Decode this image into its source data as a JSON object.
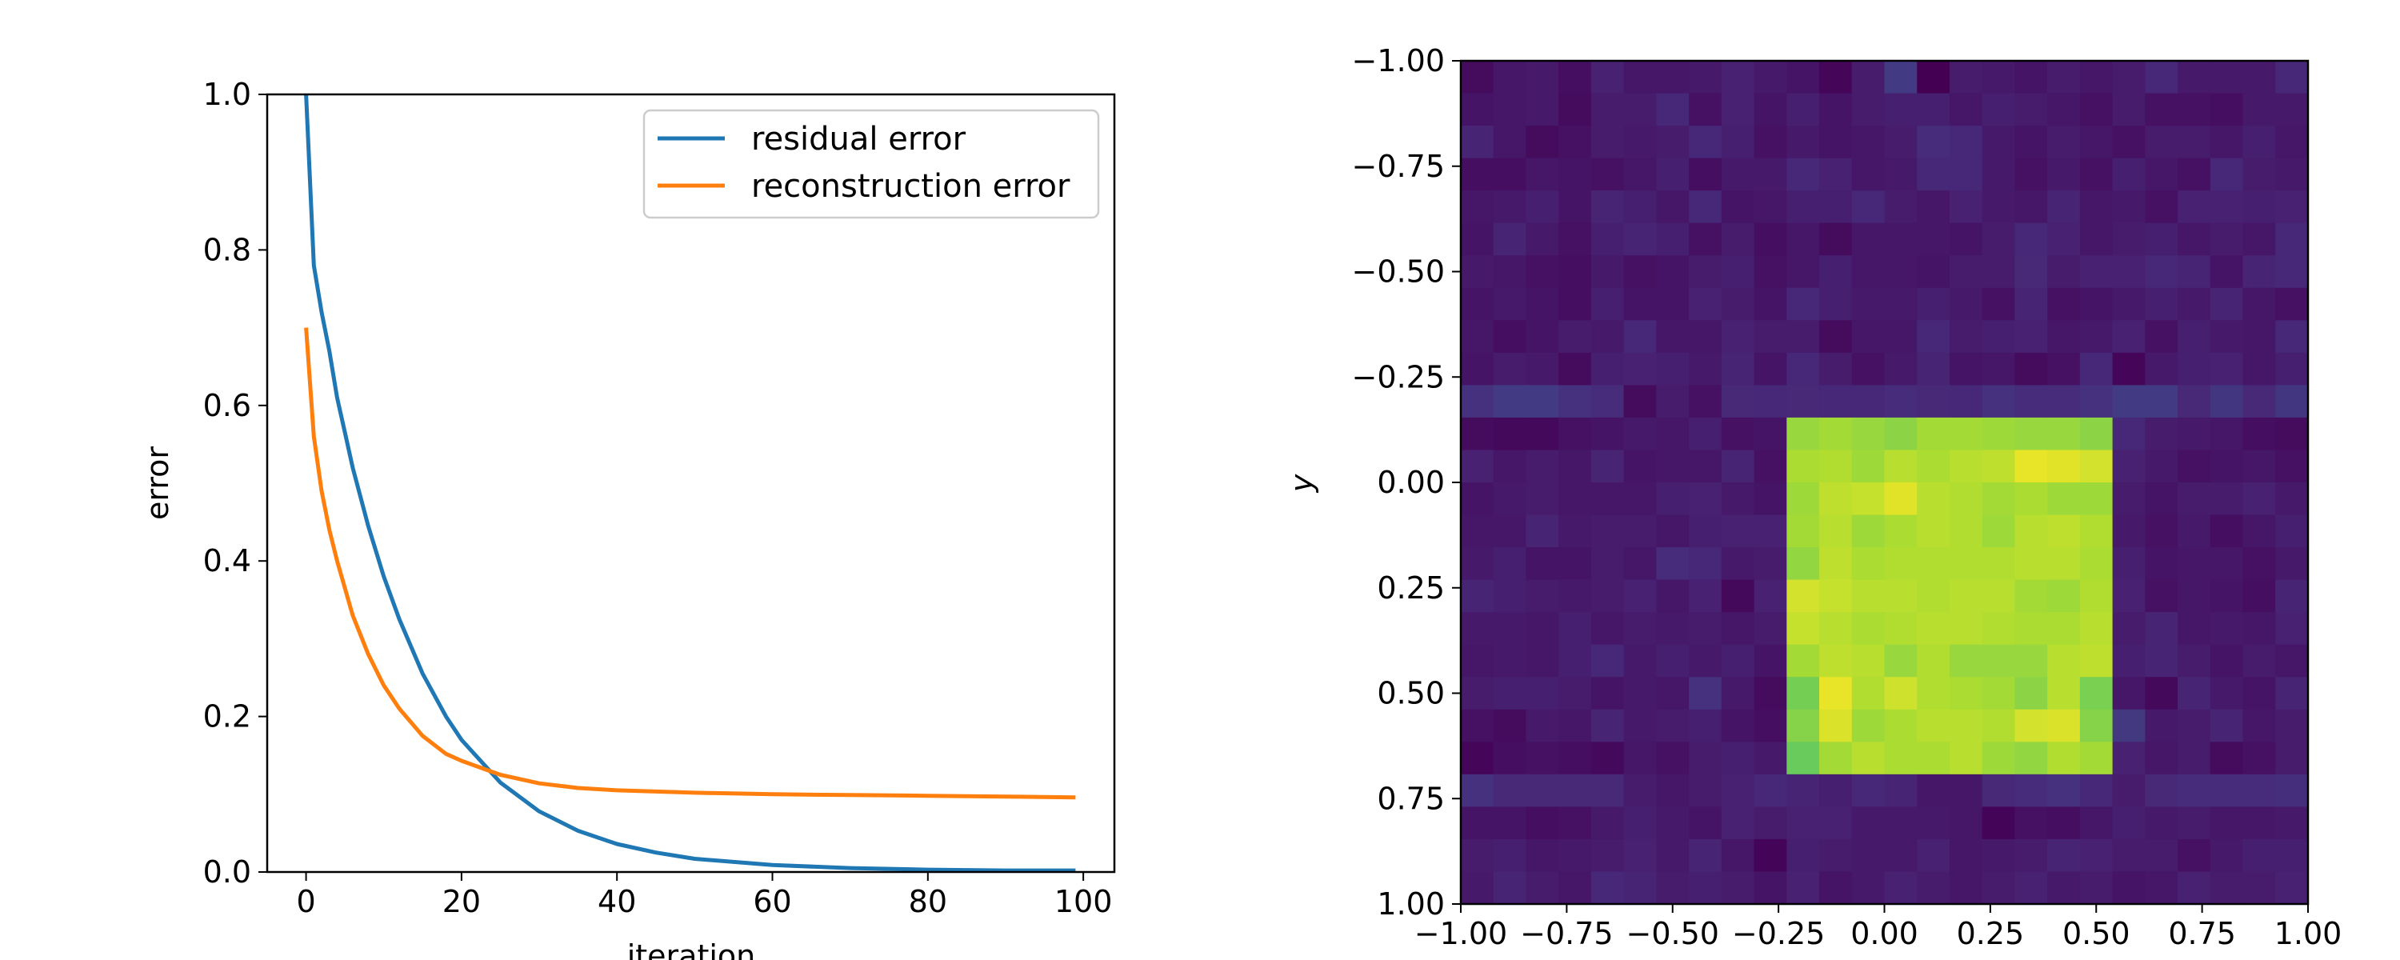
{
  "chart_data": [
    {
      "type": "line",
      "title": "",
      "xlabel": "iteration",
      "ylabel": "error",
      "xlim": [
        -5,
        104
      ],
      "ylim": [
        0,
        1
      ],
      "xticks": [
        0,
        20,
        40,
        60,
        80,
        100
      ],
      "xtick_labels": [
        "0",
        "20",
        "40",
        "60",
        "80",
        "100"
      ],
      "yticks": [
        0,
        0.2,
        0.4,
        0.6,
        0.8,
        1.0
      ],
      "ytick_labels": [
        "0.0",
        "0.2",
        "0.4",
        "0.6",
        "0.8",
        "1.0"
      ],
      "grid": false,
      "legend": "top-right",
      "series": [
        {
          "name": "residual error",
          "color": "#1f77b4",
          "x": [
            0,
            1,
            2,
            3,
            4,
            5,
            6,
            8,
            10,
            12,
            15,
            18,
            20,
            25,
            30,
            35,
            40,
            45,
            50,
            60,
            70,
            80,
            90,
            99
          ],
          "y": [
            1.0,
            0.78,
            0.72,
            0.67,
            0.61,
            0.565,
            0.52,
            0.445,
            0.38,
            0.325,
            0.255,
            0.2,
            0.17,
            0.115,
            0.078,
            0.053,
            0.036,
            0.025,
            0.017,
            0.009,
            0.005,
            0.003,
            0.002,
            0.002
          ]
        },
        {
          "name": "reconstruction error",
          "color": "#ff7f0e",
          "x": [
            0,
            1,
            2,
            3,
            4,
            6,
            8,
            10,
            12,
            15,
            18,
            20,
            25,
            30,
            35,
            40,
            50,
            60,
            70,
            80,
            90,
            99
          ],
          "y": [
            0.7,
            0.56,
            0.49,
            0.44,
            0.4,
            0.33,
            0.28,
            0.24,
            0.21,
            0.175,
            0.152,
            0.143,
            0.125,
            0.114,
            0.108,
            0.105,
            0.102,
            0.1,
            0.099,
            0.098,
            0.097,
            0.096
          ]
        }
      ]
    },
    {
      "type": "heatmap",
      "title": "",
      "xlabel": "",
      "ylabel": "y",
      "xlim": [
        -1,
        1
      ],
      "ylim": [
        -1,
        1
      ],
      "y_inverted": true,
      "xticks": [
        -1.0,
        -0.75,
        -0.5,
        -0.25,
        0.0,
        0.25,
        0.5,
        0.75,
        1.0
      ],
      "xtick_labels": [
        "−1.00",
        "−0.75",
        "−0.50",
        "−0.25",
        "0.00",
        "0.25",
        "0.50",
        "0.75",
        "1.00"
      ],
      "yticks": [
        -1.0,
        -0.75,
        -0.5,
        -0.25,
        0.0,
        0.25,
        0.5,
        0.75,
        1.0
      ],
      "ytick_labels": [
        "−1.00",
        "−0.75",
        "−0.50",
        "−0.25",
        "0.00",
        "0.25",
        "0.50",
        "0.75",
        "1.00"
      ],
      "grid_size": [
        26,
        26
      ],
      "colormap": "viridis",
      "value_range": [
        0,
        1
      ],
      "values": [
        [
          0.04,
          0.08,
          0.09,
          0.05,
          0.12,
          0.08,
          0.08,
          0.09,
          0.12,
          0.09,
          0.07,
          0.02,
          0.1,
          0.22,
          0.0,
          0.1,
          0.09,
          0.07,
          0.1,
          0.08,
          0.1,
          0.14,
          0.09,
          0.09,
          0.09,
          0.14
        ],
        [
          0.07,
          0.08,
          0.09,
          0.04,
          0.1,
          0.1,
          0.14,
          0.06,
          0.12,
          0.07,
          0.11,
          0.07,
          0.1,
          0.11,
          0.11,
          0.08,
          0.11,
          0.1,
          0.08,
          0.06,
          0.1,
          0.06,
          0.06,
          0.05,
          0.09,
          0.09
        ],
        [
          0.13,
          0.08,
          0.04,
          0.06,
          0.1,
          0.09,
          0.1,
          0.14,
          0.11,
          0.06,
          0.09,
          0.07,
          0.08,
          0.1,
          0.16,
          0.14,
          0.09,
          0.07,
          0.1,
          0.08,
          0.06,
          0.1,
          0.1,
          0.08,
          0.11,
          0.08
        ],
        [
          0.05,
          0.05,
          0.08,
          0.07,
          0.06,
          0.08,
          0.11,
          0.05,
          0.09,
          0.09,
          0.14,
          0.12,
          0.08,
          0.09,
          0.14,
          0.14,
          0.09,
          0.06,
          0.09,
          0.06,
          0.11,
          0.08,
          0.06,
          0.14,
          0.1,
          0.09
        ],
        [
          0.08,
          0.09,
          0.11,
          0.07,
          0.13,
          0.11,
          0.08,
          0.14,
          0.07,
          0.08,
          0.11,
          0.11,
          0.14,
          0.1,
          0.08,
          0.12,
          0.09,
          0.08,
          0.13,
          0.08,
          0.09,
          0.06,
          0.12,
          0.12,
          0.11,
          0.12
        ],
        [
          0.07,
          0.13,
          0.09,
          0.06,
          0.11,
          0.13,
          0.11,
          0.06,
          0.1,
          0.05,
          0.08,
          0.04,
          0.08,
          0.08,
          0.08,
          0.07,
          0.1,
          0.14,
          0.12,
          0.08,
          0.1,
          0.11,
          0.08,
          0.1,
          0.08,
          0.14
        ],
        [
          0.09,
          0.08,
          0.06,
          0.05,
          0.09,
          0.06,
          0.07,
          0.1,
          0.11,
          0.06,
          0.08,
          0.11,
          0.08,
          0.08,
          0.07,
          0.1,
          0.1,
          0.15,
          0.1,
          0.12,
          0.12,
          0.14,
          0.13,
          0.07,
          0.13,
          0.14
        ],
        [
          0.07,
          0.09,
          0.07,
          0.05,
          0.11,
          0.07,
          0.07,
          0.12,
          0.1,
          0.07,
          0.14,
          0.11,
          0.09,
          0.09,
          0.11,
          0.09,
          0.06,
          0.13,
          0.06,
          0.07,
          0.09,
          0.11,
          0.09,
          0.13,
          0.08,
          0.06
        ],
        [
          0.08,
          0.05,
          0.07,
          0.1,
          0.09,
          0.14,
          0.08,
          0.08,
          0.12,
          0.1,
          0.1,
          0.04,
          0.08,
          0.08,
          0.14,
          0.1,
          0.11,
          0.12,
          0.08,
          0.09,
          0.12,
          0.06,
          0.11,
          0.09,
          0.08,
          0.14
        ],
        [
          0.07,
          0.1,
          0.09,
          0.04,
          0.11,
          0.12,
          0.11,
          0.09,
          0.13,
          0.07,
          0.14,
          0.1,
          0.06,
          0.09,
          0.13,
          0.07,
          0.08,
          0.04,
          0.06,
          0.14,
          0.02,
          0.09,
          0.11,
          0.12,
          0.08,
          0.11
        ],
        [
          0.18,
          0.22,
          0.22,
          0.18,
          0.16,
          0.04,
          0.1,
          0.06,
          0.15,
          0.14,
          0.15,
          0.14,
          0.14,
          0.16,
          0.15,
          0.14,
          0.18,
          0.16,
          0.16,
          0.18,
          0.22,
          0.22,
          0.15,
          0.2,
          0.15,
          0.2
        ],
        [
          0.04,
          0.03,
          0.03,
          0.06,
          0.07,
          0.09,
          0.08,
          0.11,
          0.06,
          0.07,
          0.85,
          0.87,
          0.85,
          0.83,
          0.87,
          0.87,
          0.86,
          0.85,
          0.85,
          0.83,
          0.14,
          0.1,
          0.09,
          0.08,
          0.05,
          0.04
        ],
        [
          0.12,
          0.08,
          0.1,
          0.08,
          0.13,
          0.07,
          0.08,
          0.08,
          0.13,
          0.06,
          0.88,
          0.89,
          0.86,
          0.9,
          0.88,
          0.9,
          0.91,
          0.97,
          0.96,
          0.94,
          0.12,
          0.09,
          0.06,
          0.07,
          0.08,
          0.06
        ],
        [
          0.07,
          0.09,
          0.1,
          0.08,
          0.08,
          0.08,
          0.11,
          0.12,
          0.09,
          0.07,
          0.86,
          0.91,
          0.92,
          0.96,
          0.9,
          0.89,
          0.87,
          0.88,
          0.86,
          0.86,
          0.1,
          0.07,
          0.1,
          0.1,
          0.12,
          0.09
        ],
        [
          0.08,
          0.08,
          0.13,
          0.09,
          0.1,
          0.1,
          0.08,
          0.11,
          0.12,
          0.12,
          0.87,
          0.9,
          0.86,
          0.88,
          0.9,
          0.89,
          0.86,
          0.9,
          0.91,
          0.89,
          0.09,
          0.06,
          0.09,
          0.05,
          0.08,
          0.11
        ],
        [
          0.09,
          0.11,
          0.07,
          0.07,
          0.1,
          0.08,
          0.16,
          0.14,
          0.09,
          0.1,
          0.84,
          0.91,
          0.88,
          0.89,
          0.89,
          0.89,
          0.89,
          0.9,
          0.9,
          0.88,
          0.11,
          0.07,
          0.08,
          0.08,
          0.06,
          0.09
        ],
        [
          0.13,
          0.11,
          0.1,
          0.09,
          0.1,
          0.12,
          0.08,
          0.12,
          0.03,
          0.12,
          0.94,
          0.92,
          0.9,
          0.9,
          0.89,
          0.9,
          0.9,
          0.87,
          0.86,
          0.89,
          0.12,
          0.06,
          0.08,
          0.07,
          0.05,
          0.13
        ],
        [
          0.09,
          0.09,
          0.08,
          0.11,
          0.08,
          0.1,
          0.09,
          0.1,
          0.08,
          0.1,
          0.92,
          0.9,
          0.88,
          0.89,
          0.9,
          0.9,
          0.89,
          0.88,
          0.88,
          0.9,
          0.1,
          0.13,
          0.08,
          0.09,
          0.08,
          0.12
        ],
        [
          0.08,
          0.09,
          0.08,
          0.11,
          0.14,
          0.09,
          0.11,
          0.09,
          0.11,
          0.07,
          0.87,
          0.91,
          0.9,
          0.85,
          0.89,
          0.85,
          0.85,
          0.85,
          0.9,
          0.91,
          0.11,
          0.13,
          0.1,
          0.07,
          0.1,
          0.08
        ],
        [
          0.1,
          0.11,
          0.11,
          0.1,
          0.07,
          0.09,
          0.08,
          0.18,
          0.09,
          0.04,
          0.79,
          0.97,
          0.89,
          0.93,
          0.89,
          0.88,
          0.87,
          0.83,
          0.9,
          0.8,
          0.08,
          0.03,
          0.13,
          0.09,
          0.07,
          0.13
        ],
        [
          0.06,
          0.04,
          0.09,
          0.08,
          0.13,
          0.09,
          0.1,
          0.11,
          0.07,
          0.05,
          0.82,
          0.95,
          0.86,
          0.88,
          0.9,
          0.9,
          0.89,
          0.94,
          0.95,
          0.82,
          0.21,
          0.09,
          0.1,
          0.13,
          0.08,
          0.1
        ],
        [
          0.02,
          0.05,
          0.06,
          0.05,
          0.03,
          0.08,
          0.06,
          0.1,
          0.11,
          0.09,
          0.77,
          0.87,
          0.9,
          0.88,
          0.88,
          0.9,
          0.86,
          0.84,
          0.89,
          0.87,
          0.12,
          0.08,
          0.1,
          0.04,
          0.06,
          0.1
        ],
        [
          0.18,
          0.15,
          0.15,
          0.15,
          0.15,
          0.1,
          0.08,
          0.1,
          0.12,
          0.14,
          0.13,
          0.11,
          0.14,
          0.13,
          0.08,
          0.08,
          0.15,
          0.16,
          0.18,
          0.14,
          0.1,
          0.15,
          0.16,
          0.16,
          0.16,
          0.17
        ],
        [
          0.07,
          0.07,
          0.05,
          0.06,
          0.09,
          0.11,
          0.09,
          0.07,
          0.12,
          0.1,
          0.12,
          0.12,
          0.09,
          0.09,
          0.09,
          0.08,
          0.01,
          0.06,
          0.05,
          0.08,
          0.11,
          0.09,
          0.1,
          0.08,
          0.08,
          0.09
        ],
        [
          0.1,
          0.11,
          0.08,
          0.09,
          0.1,
          0.12,
          0.09,
          0.13,
          0.08,
          0.01,
          0.11,
          0.1,
          0.09,
          0.09,
          0.12,
          0.08,
          0.09,
          0.1,
          0.13,
          0.12,
          0.1,
          0.1,
          0.06,
          0.09,
          0.11,
          0.11
        ],
        [
          0.09,
          0.13,
          0.1,
          0.08,
          0.14,
          0.13,
          0.1,
          0.11,
          0.1,
          0.07,
          0.12,
          0.07,
          0.09,
          0.12,
          0.1,
          0.08,
          0.1,
          0.12,
          0.09,
          0.1,
          0.07,
          0.08,
          0.12,
          0.1,
          0.1,
          0.12
        ]
      ]
    }
  ]
}
